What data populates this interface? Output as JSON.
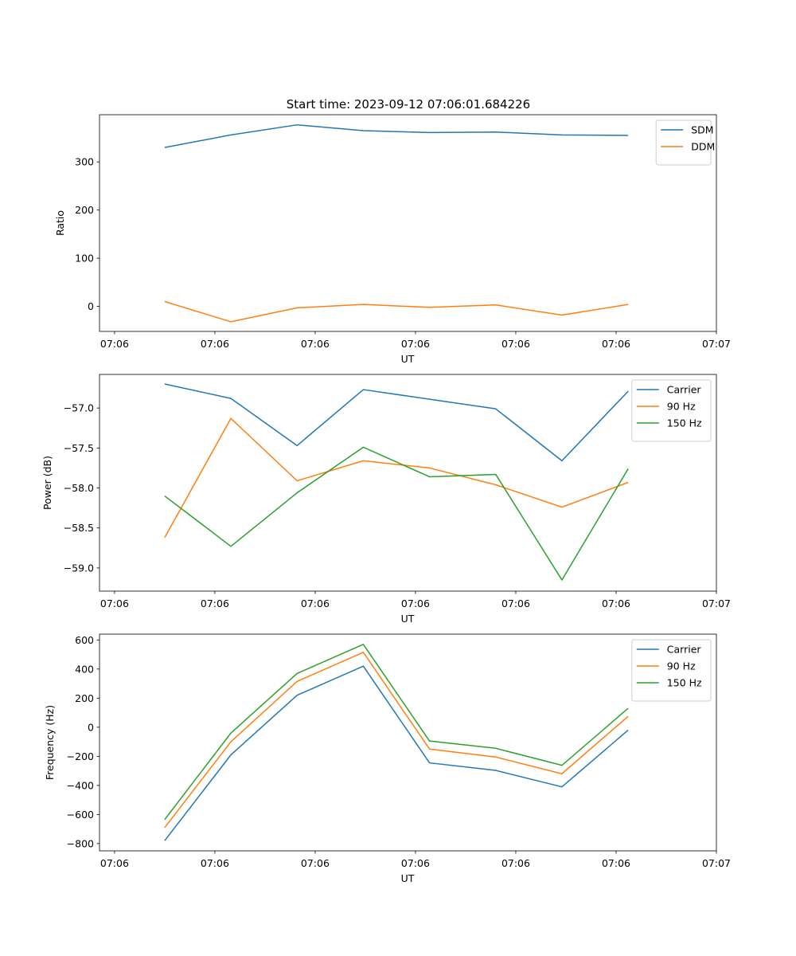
{
  "title": "Start time: 2023-09-12 07:06:01.684226",
  "colors": {
    "blue": "#1f77b4",
    "orange": "#ff7f0e",
    "green": "#2ca02c"
  },
  "chart_data": [
    {
      "type": "line",
      "xlabel": "UT",
      "ylabel": "Ratio",
      "x_tick_labels": [
        "07:06",
        "07:06",
        "07:06",
        "07:06",
        "07:06",
        "07:06",
        "07:07"
      ],
      "x": [
        0.5,
        1.16,
        1.82,
        2.48,
        3.14,
        3.8,
        4.46,
        5.12
      ],
      "xlim": [
        -0.15,
        6.0
      ],
      "ylim": [
        -52,
        398
      ],
      "yticks": [
        0,
        100,
        200,
        300
      ],
      "y_tick_labels": [
        "0",
        "100",
        "200",
        "300"
      ],
      "legend_loc": "upper right",
      "series": [
        {
          "name": "SDM",
          "color": "#1f77b4",
          "values": [
            330,
            356,
            377,
            365,
            361,
            362,
            356,
            355
          ]
        },
        {
          "name": "DDM",
          "color": "#ff7f0e",
          "values": [
            10,
            -32,
            -3,
            4,
            -2,
            3,
            -18,
            4
          ]
        }
      ]
    },
    {
      "type": "line",
      "xlabel": "UT",
      "ylabel": "Power (dB)",
      "x_tick_labels": [
        "07:06",
        "07:06",
        "07:06",
        "07:06",
        "07:06",
        "07:06",
        "07:07"
      ],
      "x": [
        0.5,
        1.16,
        1.82,
        2.48,
        3.14,
        3.8,
        4.46,
        5.12
      ],
      "xlim": [
        -0.15,
        6.0
      ],
      "ylim": [
        -59.29,
        -56.58
      ],
      "yticks": [
        -59.0,
        -58.5,
        -58.0,
        -57.5,
        -57.0
      ],
      "y_tick_labels": [
        "−59.0",
        "−58.5",
        "−58.0",
        "−57.5",
        "−57.0"
      ],
      "legend_loc": "upper right",
      "series": [
        {
          "name": "Carrier",
          "color": "#1f77b4",
          "values": [
            -56.7,
            -56.88,
            -57.47,
            -56.77,
            -56.89,
            -57.01,
            -57.66,
            -56.79
          ]
        },
        {
          "name": "90 Hz",
          "color": "#ff7f0e",
          "values": [
            -58.62,
            -57.13,
            -57.91,
            -57.66,
            -57.75,
            -57.96,
            -58.24,
            -57.93
          ]
        },
        {
          "name": "150 Hz",
          "color": "#2ca02c",
          "values": [
            -58.1,
            -58.73,
            -58.06,
            -57.49,
            -57.86,
            -57.83,
            -59.15,
            -57.76
          ]
        }
      ]
    },
    {
      "type": "line",
      "xlabel": "UT",
      "ylabel": "Frequency (Hz)",
      "x_tick_labels": [
        "07:06",
        "07:06",
        "07:06",
        "07:06",
        "07:06",
        "07:06",
        "07:07"
      ],
      "x": [
        0.5,
        1.16,
        1.82,
        2.48,
        3.14,
        3.8,
        4.46,
        5.12
      ],
      "xlim": [
        -0.15,
        6.0
      ],
      "ylim": [
        -850,
        640
      ],
      "yticks": [
        -800,
        -600,
        -400,
        -200,
        0,
        200,
        400,
        600
      ],
      "y_tick_labels": [
        "−800",
        "−600",
        "−400",
        "−200",
        "0",
        "200",
        "400",
        "600"
      ],
      "legend_loc": "upper right",
      "series": [
        {
          "name": "Carrier",
          "color": "#1f77b4",
          "values": [
            -780,
            -190,
            220,
            420,
            -245,
            -297,
            -410,
            -20
          ]
        },
        {
          "name": "90 Hz",
          "color": "#ff7f0e",
          "values": [
            -690,
            -100,
            315,
            515,
            -150,
            -205,
            -320,
            75
          ]
        },
        {
          "name": "150 Hz",
          "color": "#2ca02c",
          "values": [
            -635,
            -40,
            370,
            570,
            -95,
            -145,
            -262,
            130
          ]
        }
      ]
    }
  ]
}
